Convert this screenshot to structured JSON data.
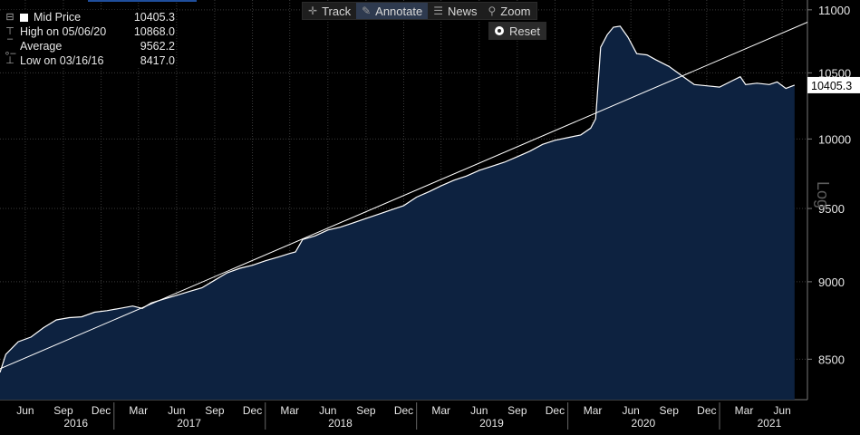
{
  "toolbar": {
    "buttons": [
      {
        "label": "Track",
        "icon": "crosshair-icon",
        "glyph": "✛",
        "active": false
      },
      {
        "label": "Annotate",
        "icon": "pencil-icon",
        "glyph": "✎",
        "active": true
      },
      {
        "label": "News",
        "icon": "news-icon",
        "glyph": "☰",
        "active": false
      },
      {
        "label": "Zoom",
        "icon": "magnifier-icon",
        "glyph": "⚲",
        "active": false
      }
    ],
    "reset_label": "Reset"
  },
  "legend": {
    "rows": [
      {
        "label": "Mid Price",
        "value": "10405.3"
      },
      {
        "label": "High on 05/06/20",
        "value": "10868.0"
      },
      {
        "label": "Average",
        "value": "9562.2"
      },
      {
        "label": "Low on 03/16/16",
        "value": "8417.0"
      }
    ]
  },
  "colors": {
    "fill": "#0d2240",
    "line": "#ffffff",
    "grid": "#3a3a3a",
    "background": "#000000",
    "axis_text": "#e6e6e6"
  },
  "chart_data": {
    "type": "area",
    "y_scale": "log",
    "ylabel": "Log",
    "ylim": [
      8250,
      11080
    ],
    "y_ticks": [
      8500,
      9000,
      9500,
      10000,
      10500,
      11000
    ],
    "x_range": [
      "2016-04-01",
      "2021-08-01"
    ],
    "x_tick_labels": [
      {
        "date": "2016-06-01",
        "label": "Jun"
      },
      {
        "date": "2016-09-01",
        "label": "Sep"
      },
      {
        "date": "2016-12-01",
        "label": "Dec"
      },
      {
        "date": "2017-03-01",
        "label": "Mar"
      },
      {
        "date": "2017-06-01",
        "label": "Jun"
      },
      {
        "date": "2017-09-01",
        "label": "Sep"
      },
      {
        "date": "2017-12-01",
        "label": "Dec"
      },
      {
        "date": "2018-03-01",
        "label": "Mar"
      },
      {
        "date": "2018-06-01",
        "label": "Jun"
      },
      {
        "date": "2018-09-01",
        "label": "Sep"
      },
      {
        "date": "2018-12-01",
        "label": "Dec"
      },
      {
        "date": "2019-03-01",
        "label": "Mar"
      },
      {
        "date": "2019-06-01",
        "label": "Jun"
      },
      {
        "date": "2019-09-01",
        "label": "Sep"
      },
      {
        "date": "2019-12-01",
        "label": "Dec"
      },
      {
        "date": "2020-03-01",
        "label": "Mar"
      },
      {
        "date": "2020-06-01",
        "label": "Jun"
      },
      {
        "date": "2020-09-01",
        "label": "Sep"
      },
      {
        "date": "2020-12-01",
        "label": "Dec"
      },
      {
        "date": "2021-03-01",
        "label": "Mar"
      },
      {
        "date": "2021-06-01",
        "label": "Jun"
      }
    ],
    "year_labels": [
      {
        "year": "2016",
        "date": "2016-10-01"
      },
      {
        "year": "2017",
        "date": "2017-07-01"
      },
      {
        "year": "2018",
        "date": "2018-07-01"
      },
      {
        "year": "2019",
        "date": "2019-07-01"
      },
      {
        "year": "2020",
        "date": "2020-07-01"
      },
      {
        "year": "2021",
        "date": "2021-05-01"
      }
    ],
    "series": [
      {
        "name": "Mid Price",
        "points": [
          [
            "2016-03-16",
            8417
          ],
          [
            "2016-04-15",
            8530
          ],
          [
            "2016-05-15",
            8610
          ],
          [
            "2016-06-15",
            8640
          ],
          [
            "2016-07-15",
            8700
          ],
          [
            "2016-08-15",
            8750
          ],
          [
            "2016-09-15",
            8765
          ],
          [
            "2016-10-15",
            8770
          ],
          [
            "2016-11-15",
            8800
          ],
          [
            "2016-12-15",
            8810
          ],
          [
            "2017-01-15",
            8825
          ],
          [
            "2017-02-15",
            8840
          ],
          [
            "2017-03-10",
            8825
          ],
          [
            "2017-04-01",
            8860
          ],
          [
            "2017-05-01",
            8885
          ],
          [
            "2017-06-01",
            8910
          ],
          [
            "2017-07-01",
            8935
          ],
          [
            "2017-08-01",
            8960
          ],
          [
            "2017-09-01",
            9010
          ],
          [
            "2017-10-01",
            9060
          ],
          [
            "2017-11-01",
            9090
          ],
          [
            "2017-12-01",
            9110
          ],
          [
            "2018-01-01",
            9140
          ],
          [
            "2018-02-01",
            9165
          ],
          [
            "2018-03-01",
            9190
          ],
          [
            "2018-03-15",
            9200
          ],
          [
            "2018-04-01",
            9285
          ],
          [
            "2018-05-01",
            9310
          ],
          [
            "2018-06-01",
            9350
          ],
          [
            "2018-07-01",
            9370
          ],
          [
            "2018-08-01",
            9400
          ],
          [
            "2018-09-01",
            9430
          ],
          [
            "2018-10-01",
            9460
          ],
          [
            "2018-11-01",
            9490
          ],
          [
            "2018-12-01",
            9520
          ],
          [
            "2019-01-01",
            9580
          ],
          [
            "2019-02-01",
            9620
          ],
          [
            "2019-03-01",
            9660
          ],
          [
            "2019-04-01",
            9700
          ],
          [
            "2019-05-01",
            9730
          ],
          [
            "2019-06-01",
            9770
          ],
          [
            "2019-07-01",
            9800
          ],
          [
            "2019-08-01",
            9830
          ],
          [
            "2019-09-01",
            9870
          ],
          [
            "2019-10-01",
            9910
          ],
          [
            "2019-11-01",
            9960
          ],
          [
            "2019-12-01",
            9990
          ],
          [
            "2020-01-01",
            10010
          ],
          [
            "2020-02-01",
            10030
          ],
          [
            "2020-02-25",
            10080
          ],
          [
            "2020-03-08",
            10150
          ],
          [
            "2020-03-20",
            10700
          ],
          [
            "2020-04-05",
            10800
          ],
          [
            "2020-04-20",
            10860
          ],
          [
            "2020-05-06",
            10868
          ],
          [
            "2020-05-25",
            10780
          ],
          [
            "2020-06-15",
            10650
          ],
          [
            "2020-07-10",
            10640
          ],
          [
            "2020-08-01",
            10600
          ],
          [
            "2020-09-01",
            10550
          ],
          [
            "2020-10-01",
            10480
          ],
          [
            "2020-11-01",
            10410
          ],
          [
            "2020-12-01",
            10400
          ],
          [
            "2021-01-01",
            10390
          ],
          [
            "2021-02-01",
            10440
          ],
          [
            "2021-02-20",
            10470
          ],
          [
            "2021-03-05",
            10410
          ],
          [
            "2021-04-01",
            10420
          ],
          [
            "2021-05-01",
            10410
          ],
          [
            "2021-05-20",
            10430
          ],
          [
            "2021-06-10",
            10380
          ],
          [
            "2021-07-01",
            10405.3
          ]
        ]
      },
      {
        "name": "Trend line",
        "points": [
          [
            "2016-03-16",
            8440
          ],
          [
            "2021-08-01",
            10900
          ]
        ]
      }
    ],
    "last_value_label": "10405.3"
  }
}
